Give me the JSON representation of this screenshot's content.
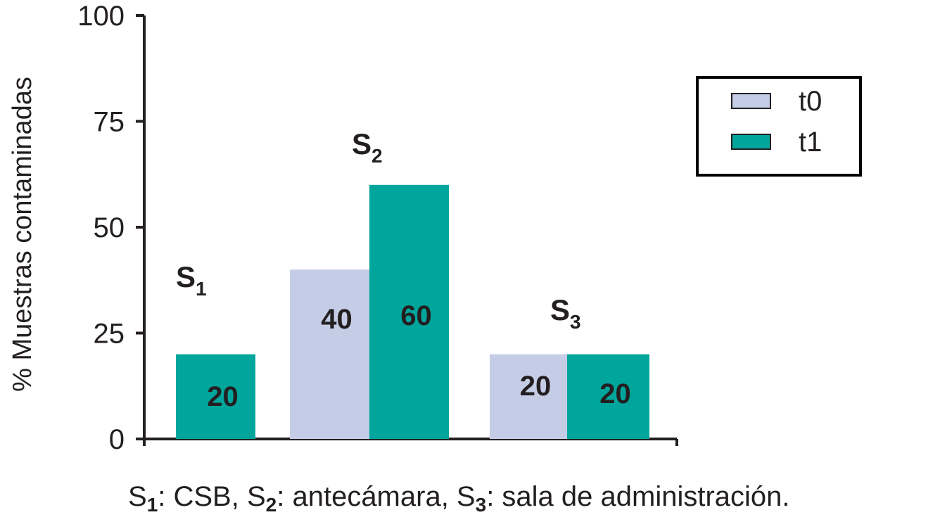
{
  "chart_data": {
    "type": "bar",
    "ylabel": "% Muestras contaminadas",
    "ylim": [
      0,
      100
    ],
    "yticks": [
      0,
      25,
      50,
      75,
      100
    ],
    "grid": false,
    "legend_position": "top-right",
    "categories": [
      {
        "main": "S",
        "sub": "1"
      },
      {
        "main": "S",
        "sub": "2"
      },
      {
        "main": "S",
        "sub": "3"
      }
    ],
    "series": [
      {
        "name": "t0",
        "color": "#c5cde6",
        "values": [
          0,
          40,
          20
        ]
      },
      {
        "name": "t1",
        "color": "#00a69c",
        "values": [
          20,
          60,
          20
        ]
      }
    ],
    "footnote": [
      {
        "main": "S",
        "sub": "1",
        "text": ": CSB, "
      },
      {
        "main": "S",
        "sub": "2",
        "text": ": antecámara, "
      },
      {
        "main": "S",
        "sub": "3",
        "text": ": sala de administración."
      }
    ]
  }
}
